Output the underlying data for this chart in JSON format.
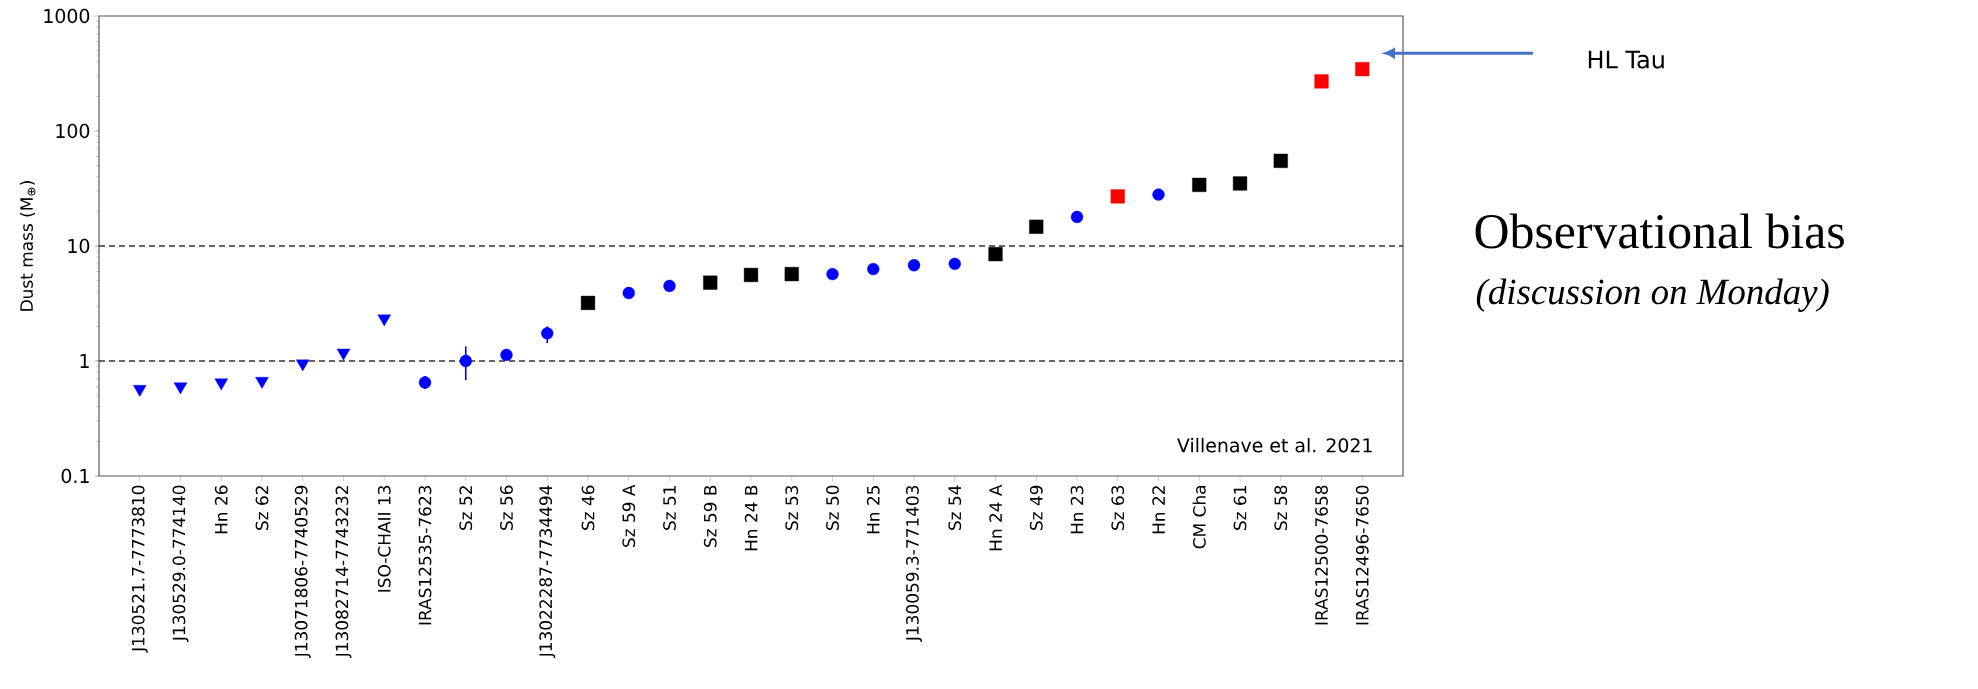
{
  "chart_data": {
    "type": "scatter",
    "title": "Observational bias",
    "subtitle": "(discussion on Monday)",
    "ylabel": "Dust mass (M$_{⊕}$)",
    "categories": [
      "J130521.7-7773810",
      "J130529.0-774140",
      "Hn 26",
      "Sz 62",
      "J13071806-7740529",
      "J13082714-7743232",
      "ISO-CHAII 13",
      "IRAS12535-7623",
      "Sz 52",
      "Sz 56",
      "J13022287-7734494",
      "Sz 46",
      "Sz 59 A",
      "Sz 51",
      "Sz 59 B",
      "Hn 24 B",
      "Sz 53",
      "Sz 50",
      "Hn 25",
      "J130059.3-771403",
      "Sz 54",
      "Hn 24 A",
      "Sz 49",
      "Hn 23",
      "Sz 63",
      "Hn 22",
      "CM Cha",
      "Sz 61",
      "Sz 58",
      "IRAS12500-7658",
      "IRAS12496-7650"
    ],
    "series": [
      {
        "color": "#0000ff",
        "marker": "triangle",
        "values": [
          0.57,
          0.6,
          0.65,
          0.67,
          0.95,
          1.18,
          2.34,
          null,
          null,
          null,
          null,
          null,
          null,
          null,
          null,
          null,
          null,
          null,
          null,
          null,
          null,
          null,
          null,
          null,
          null,
          null,
          null,
          null,
          null,
          null,
          null
        ]
      },
      {
        "color": "#0000ff",
        "marker": "circle",
        "values": [
          null,
          null,
          null,
          null,
          null,
          null,
          null,
          0.65,
          1.0,
          1.13,
          1.74,
          null,
          3.9,
          4.5,
          null,
          null,
          null,
          5.7,
          6.3,
          6.8,
          7.0,
          null,
          null,
          17.9,
          null,
          28,
          null,
          null,
          null,
          null,
          null
        ],
        "errors": [
          null,
          null,
          null,
          null,
          null,
          null,
          null,
          [
            0.57,
            0.74
          ],
          [
            0.68,
            1.34
          ],
          null,
          [
            1.43,
            2.0
          ],
          null,
          null,
          null,
          null,
          null,
          null,
          null,
          null,
          null,
          null,
          null,
          null,
          null,
          null,
          null,
          null,
          null,
          null,
          null,
          null
        ]
      },
      {
        "color": "#000000",
        "marker": "square",
        "values": [
          null,
          null,
          null,
          null,
          null,
          null,
          null,
          null,
          null,
          null,
          null,
          3.2,
          null,
          null,
          4.8,
          5.6,
          5.7,
          null,
          null,
          null,
          null,
          8.5,
          14.7,
          null,
          null,
          null,
          34,
          35,
          55,
          null,
          null
        ]
      },
      {
        "color": "#ff0000",
        "marker": "square",
        "values": [
          null,
          null,
          null,
          null,
          null,
          null,
          null,
          null,
          null,
          null,
          null,
          null,
          null,
          null,
          null,
          null,
          null,
          null,
          null,
          null,
          null,
          null,
          null,
          null,
          27,
          null,
          null,
          null,
          null,
          270,
          345
        ]
      }
    ],
    "log": "y",
    "ylim": [
      0.1,
      1000
    ],
    "yticks": [
      0.1,
      1,
      10,
      100,
      1000
    ],
    "ref_lines": [
      {
        "axis": "y",
        "value": 1,
        "line_style": "dashed",
        "color": "#333333"
      },
      {
        "axis": "y",
        "value": 10,
        "line_style": "dashed",
        "color": "#333333"
      }
    ],
    "annotations": [
      "Villenave et al. 2021",
      "HL Tau"
    ]
  }
}
